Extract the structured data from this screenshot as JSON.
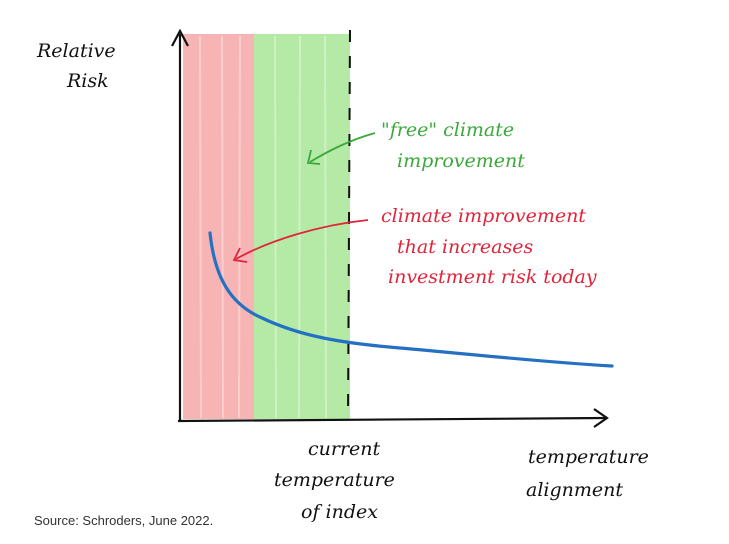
{
  "diagram": {
    "y_axis_label": [
      "Relative",
      "Risk"
    ],
    "x_axis_label": [
      "temperature",
      "alignment"
    ],
    "current_marker_label": [
      "current",
      "temperature",
      "of index"
    ],
    "annotation_green": [
      "\"free\" climate",
      "improvement"
    ],
    "annotation_red": [
      "climate improvement",
      "that increases",
      "investment risk today"
    ],
    "colors": {
      "red_zone": "#f7b4b4",
      "green_zone": "#b4eaa6",
      "curve": "#2471c4",
      "green_text": "#3aa83a",
      "red_text": "#e0243a",
      "axis": "#111111"
    }
  },
  "source": "Source: Schroders, June 2022."
}
